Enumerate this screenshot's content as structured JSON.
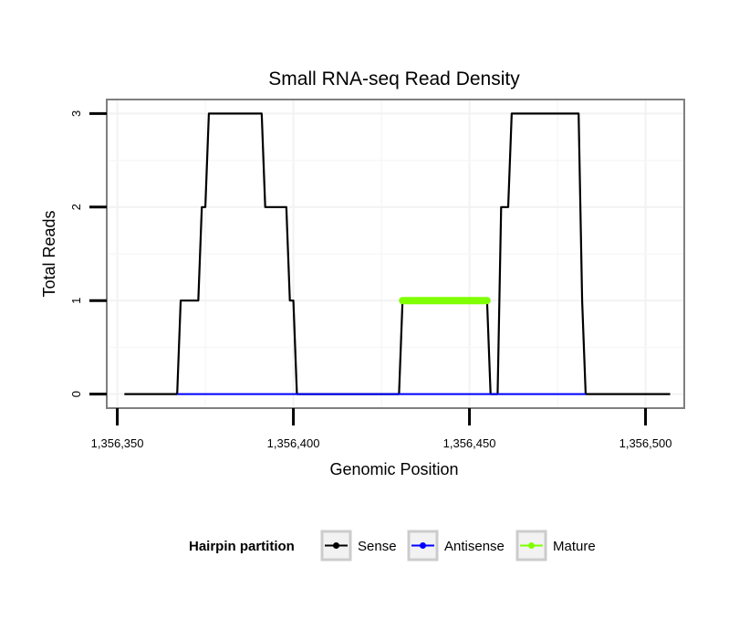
{
  "chart_data": {
    "type": "line",
    "title": "Small RNA-seq Read Density",
    "xlabel": "Genomic Position",
    "ylabel": "Total Reads",
    "xlim": [
      1356347,
      1356511
    ],
    "ylim": [
      -0.15,
      3.15
    ],
    "x_ticks": [
      1356350,
      1356400,
      1356450,
      1356500
    ],
    "x_tick_labels": [
      "1,356,350",
      "1,356,400",
      "1,356,450",
      "1,356,500"
    ],
    "y_ticks": [
      0,
      1,
      2,
      3
    ],
    "y_tick_labels": [
      "0",
      "1",
      "2",
      "3"
    ],
    "grid": true,
    "legend": {
      "title": "Hairpin partition",
      "position": "bottom",
      "entries": [
        "Sense",
        "Antisense",
        "Mature"
      ]
    },
    "series": [
      {
        "name": "Sense",
        "color": "#000000",
        "points": [
          [
            1356352,
            0
          ],
          [
            1356367,
            0
          ],
          [
            1356368,
            1
          ],
          [
            1356373,
            1
          ],
          [
            1356374,
            2
          ],
          [
            1356375,
            2
          ],
          [
            1356376,
            3
          ],
          [
            1356391,
            3
          ],
          [
            1356392,
            2
          ],
          [
            1356398,
            2
          ],
          [
            1356399,
            1
          ],
          [
            1356400,
            1
          ],
          [
            1356401,
            0
          ],
          [
            1356430,
            0
          ],
          [
            1356431,
            1
          ],
          [
            1356455,
            1
          ],
          [
            1356456,
            0
          ],
          [
            1356458,
            0
          ],
          [
            1356459,
            2
          ],
          [
            1356461,
            2
          ],
          [
            1356462,
            3
          ],
          [
            1356481,
            3
          ],
          [
            1356482,
            1
          ],
          [
            1356483,
            0
          ],
          [
            1356507,
            0
          ]
        ]
      },
      {
        "name": "Antisense",
        "color": "#0000ff",
        "points": [
          [
            1356367,
            0
          ],
          [
            1356401,
            0
          ],
          [
            1356431,
            0
          ],
          [
            1356456,
            0
          ],
          [
            1356459,
            0
          ],
          [
            1356483,
            0
          ]
        ]
      },
      {
        "name": "Mature",
        "color": "#7fff00",
        "points": [
          [
            1356431,
            1
          ],
          [
            1356455,
            1
          ]
        ]
      }
    ]
  }
}
